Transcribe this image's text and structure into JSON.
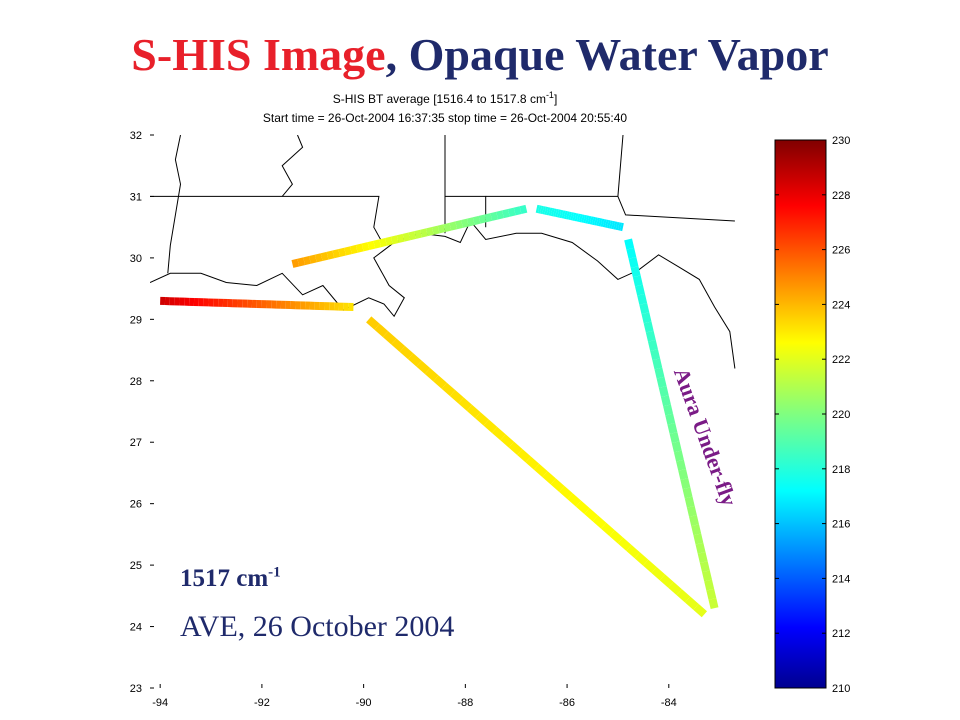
{
  "slide": {
    "title_part1": "S-HIS Image",
    "title_sep": ", ",
    "title_part2": "Opaque Water Vapor",
    "title_colors": {
      "red": "#e8202a",
      "navy": "#1f2a6b"
    },
    "annotation_freq_base": "1517 cm",
    "annotation_freq_exp": "-1",
    "annotation_date": "AVE, 26 October 2004",
    "flight_label": "Aura Under-fly",
    "flight_label_color": "#7a1b86"
  },
  "chart_data": {
    "type": "heatmap",
    "title": "S-HIS BT average [1516.4 to 1517.8 cm",
    "title_exp": "-1",
    "title_close": "]",
    "subtitle": "Start time = 26-Oct-2004 16:37:35  stop time = 26-Oct-2004 20:55:40",
    "xlim": [
      -94.2,
      -82.6
    ],
    "ylim": [
      23,
      32
    ],
    "x_ticks": [
      -94,
      -92,
      -90,
      -88,
      -86,
      -84
    ],
    "x_tick_labels": [
      "-94",
      "-92",
      "-90",
      "-88",
      "-86",
      "-84"
    ],
    "y_ticks": [
      23,
      24,
      25,
      26,
      27,
      28,
      29,
      30,
      31,
      32
    ],
    "y_tick_labels": [
      "23",
      "24",
      "25",
      "26",
      "27",
      "28",
      "29",
      "30",
      "31",
      "32"
    ],
    "colorbar": {
      "min": 210,
      "max": 230,
      "ticks": [
        210,
        212,
        214,
        216,
        218,
        220,
        222,
        224,
        226,
        228,
        230
      ],
      "tick_labels": [
        "210",
        "212",
        "214",
        "216",
        "218",
        "220",
        "222",
        "224",
        "226",
        "228",
        "230"
      ],
      "colormap": "jet"
    },
    "flight_legs": [
      {
        "name": "leg-1",
        "start": [
          -94.0,
          29.3
        ],
        "end": [
          -90.2,
          29.2
        ],
        "bt_start": 228.5,
        "bt_end": 223.0
      },
      {
        "name": "leg-2",
        "start": [
          -91.4,
          29.9
        ],
        "end": [
          -86.8,
          30.8
        ],
        "bt_start": 224.5,
        "bt_end": 218.5
      },
      {
        "name": "leg-3",
        "start": [
          -86.6,
          30.8
        ],
        "end": [
          -84.9,
          30.5
        ],
        "bt_start": 218.0,
        "bt_end": 217.0
      },
      {
        "name": "leg-4",
        "start": [
          -84.8,
          30.3
        ],
        "end": [
          -83.1,
          24.3
        ],
        "bt_start": 217.5,
        "bt_end": 221.5
      },
      {
        "name": "leg-5",
        "start": [
          -89.9,
          29.0
        ],
        "end": [
          -83.3,
          24.2
        ],
        "bt_start": 223.5,
        "bt_end": 222.0
      }
    ],
    "coastlines": [
      [
        [
          -94.2,
          29.6
        ],
        [
          -93.8,
          29.75
        ],
        [
          -93.2,
          29.75
        ],
        [
          -92.7,
          29.6
        ],
        [
          -92.1,
          29.55
        ],
        [
          -91.6,
          29.75
        ],
        [
          -91.2,
          29.4
        ],
        [
          -90.8,
          29.55
        ],
        [
          -90.4,
          29.15
        ],
        [
          -89.9,
          29.35
        ],
        [
          -89.6,
          29.25
        ],
        [
          -89.4,
          29.05
        ],
        [
          -89.2,
          29.35
        ],
        [
          -89.5,
          29.55
        ],
        [
          -89.6,
          29.7
        ],
        [
          -89.8,
          30.0
        ],
        [
          -89.4,
          30.25
        ],
        [
          -88.9,
          30.4
        ],
        [
          -88.4,
          30.35
        ],
        [
          -88.1,
          30.25
        ],
        [
          -87.9,
          30.6
        ],
        [
          -87.6,
          30.3
        ],
        [
          -87.0,
          30.4
        ],
        [
          -86.5,
          30.4
        ],
        [
          -85.9,
          30.25
        ],
        [
          -85.4,
          29.95
        ],
        [
          -85.0,
          29.65
        ],
        [
          -84.6,
          29.8
        ],
        [
          -84.2,
          30.05
        ],
        [
          -83.8,
          29.85
        ],
        [
          -83.4,
          29.65
        ],
        [
          -83.1,
          29.2
        ],
        [
          -82.8,
          28.8
        ],
        [
          -82.7,
          28.2
        ]
      ]
    ],
    "state_borders": [
      [
        [
          -93.6,
          32.0
        ],
        [
          -93.7,
          31.6
        ],
        [
          -93.6,
          31.2
        ],
        [
          -93.7,
          30.7
        ],
        [
          -93.8,
          30.2
        ],
        [
          -93.85,
          29.75
        ]
      ],
      [
        [
          -94.2,
          31.0
        ],
        [
          -93.4,
          31.0
        ],
        [
          -91.6,
          31.0
        ],
        [
          -91.4,
          31.2
        ],
        [
          -91.6,
          31.5
        ],
        [
          -91.2,
          31.8
        ],
        [
          -91.3,
          32.0
        ]
      ],
      [
        [
          -91.6,
          31.0
        ],
        [
          -89.7,
          31.0
        ],
        [
          -89.8,
          30.5
        ],
        [
          -89.6,
          30.2
        ]
      ],
      [
        [
          -88.4,
          32.0
        ],
        [
          -88.4,
          31.0
        ],
        [
          -88.4,
          30.4
        ]
      ],
      [
        [
          -88.4,
          31.0
        ],
        [
          -87.6,
          31.0
        ],
        [
          -87.6,
          30.5
        ]
      ],
      [
        [
          -87.6,
          31.0
        ],
        [
          -85.0,
          31.0
        ],
        [
          -84.9,
          32.0
        ]
      ],
      [
        [
          -85.0,
          31.0
        ],
        [
          -84.85,
          30.7
        ],
        [
          -82.7,
          30.6
        ]
      ]
    ]
  }
}
